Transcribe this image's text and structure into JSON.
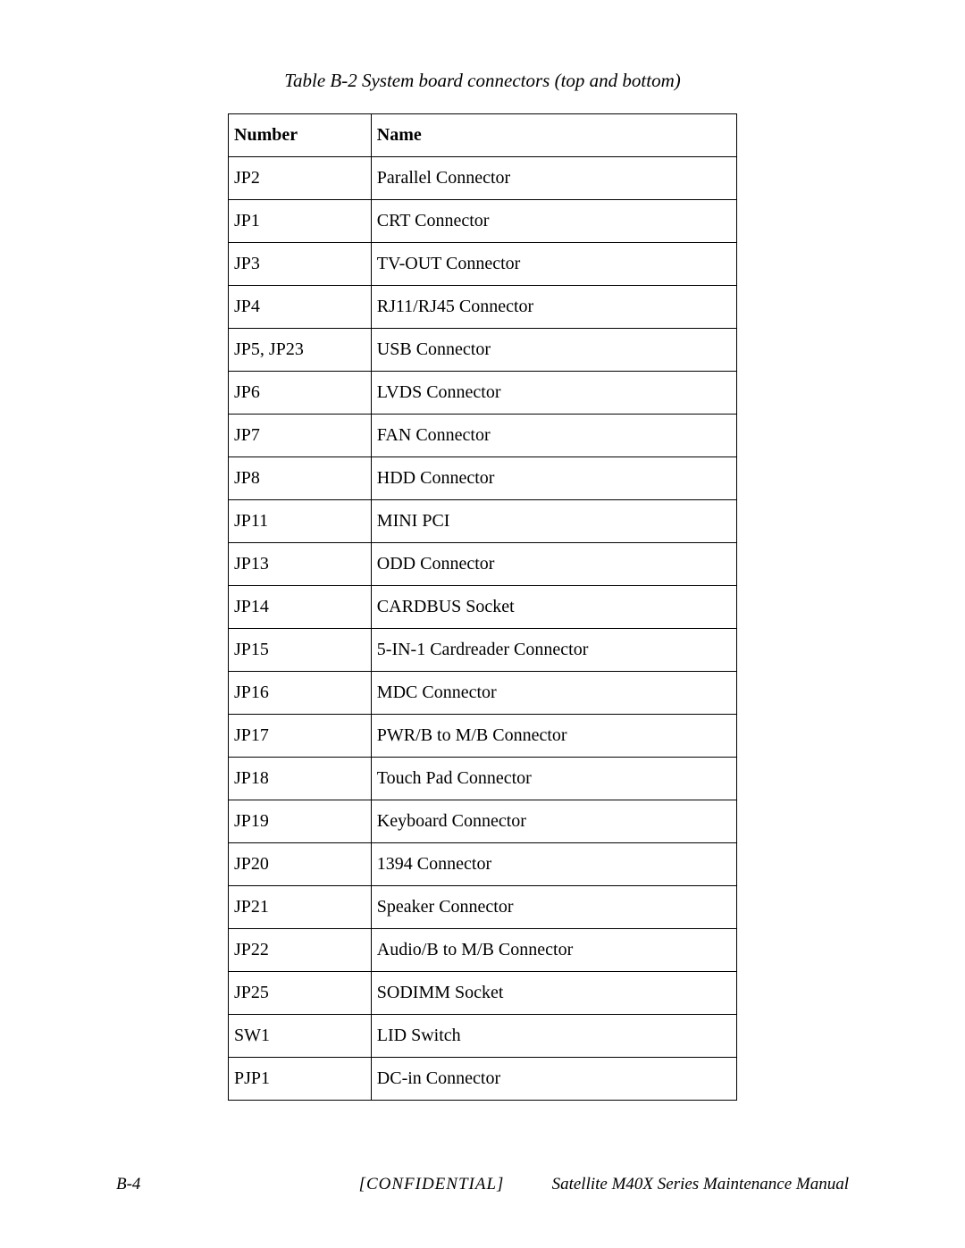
{
  "caption": "Table B-2  System board connectors (top and bottom)",
  "table": {
    "columns": [
      "Number",
      "Name"
    ],
    "rows": [
      [
        "JP2",
        "Parallel Connector"
      ],
      [
        "JP1",
        "CRT Connector"
      ],
      [
        "JP3",
        "TV-OUT Connector"
      ],
      [
        "JP4",
        "RJ11/RJ45 Connector"
      ],
      [
        "JP5, JP23",
        "USB Connector"
      ],
      [
        "JP6",
        "LVDS Connector"
      ],
      [
        "JP7",
        "FAN Connector"
      ],
      [
        "JP8",
        "HDD Connector"
      ],
      [
        "JP11",
        "MINI PCI"
      ],
      [
        "JP13",
        "ODD Connector"
      ],
      [
        "JP14",
        "CARDBUS Socket"
      ],
      [
        "JP15",
        "5-IN-1 Cardreader Connector"
      ],
      [
        "JP16",
        "MDC Connector"
      ],
      [
        "JP17",
        "PWR/B to M/B Connector"
      ],
      [
        "JP18",
        "Touch Pad Connector"
      ],
      [
        "JP19",
        "Keyboard Connector"
      ],
      [
        "JP20",
        "1394 Connector"
      ],
      [
        "JP21",
        "Speaker Connector"
      ],
      [
        "JP22",
        "Audio/B to M/B Connector"
      ],
      [
        "JP25",
        "SODIMM Socket"
      ],
      [
        "SW1",
        "LID Switch"
      ],
      [
        "PJP1",
        "DC-in Connector"
      ]
    ]
  },
  "footer": {
    "left": "B-4",
    "center": "[CONFIDENTIAL]",
    "right": "Satellite M40X Series Maintenance Manual"
  }
}
